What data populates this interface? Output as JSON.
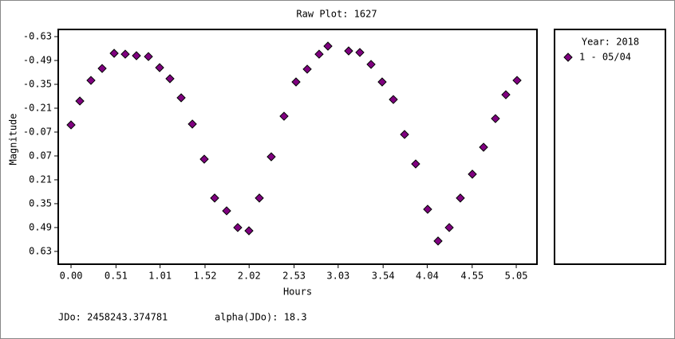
{
  "chart_data": {
    "type": "scatter",
    "title": "Raw Plot: 1627",
    "x_label": "Hours",
    "y_label": "Magnitude",
    "xlim": [
      -0.145,
      5.285
    ],
    "ylim": [
      -0.672,
      0.705
    ],
    "y_inverted": true,
    "xticks": [
      {
        "value": 0,
        "label": "0.00"
      },
      0.51,
      1.01,
      1.52,
      2.02,
      2.53,
      3.03,
      3.54,
      4.04,
      4.55,
      5.05
    ],
    "yticks": [
      -0.63,
      -0.49,
      -0.35,
      -0.21,
      -0.07,
      0.07,
      0.21,
      0.35,
      0.49,
      0.63
    ],
    "legend_title": "Year: 2018",
    "legend_position": "right",
    "series": [
      {
        "name": "1 - 05/04",
        "color": "#800080",
        "x": [
          0.0,
          0.1,
          0.226,
          0.353,
          0.489,
          0.615,
          0.742,
          0.878,
          1.005,
          1.122,
          1.249,
          1.376,
          1.511,
          1.629,
          1.765,
          1.891,
          2.018,
          2.136,
          2.271,
          2.416,
          2.552,
          2.679,
          2.814,
          2.914,
          3.149,
          3.276,
          3.403,
          3.529,
          3.656,
          3.783,
          3.909,
          4.045,
          4.163,
          4.29,
          4.416,
          4.552,
          4.679,
          4.814,
          4.932,
          5.059
        ],
        "values": [
          -0.112,
          -0.252,
          -0.373,
          -0.443,
          -0.532,
          -0.527,
          -0.518,
          -0.513,
          -0.448,
          -0.383,
          -0.271,
          -0.117,
          0.089,
          0.317,
          0.392,
          0.49,
          0.509,
          0.317,
          0.075,
          -0.163,
          -0.364,
          -0.439,
          -0.527,
          -0.574,
          -0.546,
          -0.537,
          -0.467,
          -0.364,
          -0.261,
          -0.056,
          0.117,
          0.383,
          0.569,
          0.49,
          0.317,
          0.177,
          0.019,
          -0.149,
          -0.289,
          -0.373
        ]
      }
    ],
    "annotations": [
      "JDo: 2458243.374781",
      "alpha(JDo): 18.3"
    ]
  }
}
